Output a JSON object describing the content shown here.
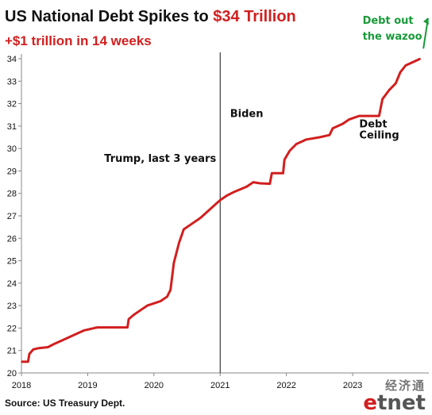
{
  "header": {
    "title_prefix": "US National Debt Spikes to ",
    "title_highlight": "$34 Trillion",
    "subtitle": "+$1 trillion  in 14 weeks"
  },
  "footer": {
    "source": "Source: US Treasury Dept.",
    "logo_cn": "经济通",
    "logo_en_e": "e",
    "logo_en_rest": "tnet"
  },
  "colors": {
    "line": "#d21f1f",
    "annotation_green": "#1a9a3a",
    "text": "#111111"
  },
  "chart_data": {
    "type": "line",
    "title": "US National Debt Spikes to $34 Trillion",
    "subtitle": "+$1 trillion  in 14 weeks",
    "x_ticks": [
      2018,
      2019,
      2020,
      2021,
      2022,
      2023
    ],
    "y_ticks": [
      20,
      21,
      22,
      23,
      24,
      25,
      26,
      27,
      28,
      29,
      30,
      31,
      32,
      33,
      34
    ],
    "xlim": [
      2018,
      2024.15
    ],
    "ylim": [
      20,
      34
    ],
    "grid": false,
    "legend": "none",
    "series": [
      {
        "values": [
          [
            2018.0,
            20.5
          ],
          [
            2018.1,
            20.5
          ],
          [
            2018.12,
            20.85
          ],
          [
            2018.18,
            21.05
          ],
          [
            2018.25,
            21.1
          ],
          [
            2018.4,
            21.15
          ],
          [
            2018.5,
            21.3
          ],
          [
            2018.65,
            21.5
          ],
          [
            2018.8,
            21.7
          ],
          [
            2018.95,
            21.9
          ],
          [
            2019.1,
            22.0
          ],
          [
            2019.15,
            22.03
          ],
          [
            2019.6,
            22.03
          ],
          [
            2019.62,
            22.4
          ],
          [
            2019.7,
            22.6
          ],
          [
            2019.8,
            22.8
          ],
          [
            2019.9,
            23.0
          ],
          [
            2020.0,
            23.1
          ],
          [
            2020.1,
            23.2
          ],
          [
            2020.2,
            23.4
          ],
          [
            2020.25,
            23.7
          ],
          [
            2020.3,
            24.9
          ],
          [
            2020.38,
            25.8
          ],
          [
            2020.45,
            26.4
          ],
          [
            2020.55,
            26.6
          ],
          [
            2020.7,
            26.9
          ],
          [
            2020.85,
            27.3
          ],
          [
            2021.0,
            27.7
          ],
          [
            2021.1,
            27.9
          ],
          [
            2021.2,
            28.05
          ],
          [
            2021.4,
            28.3
          ],
          [
            2021.5,
            28.5
          ],
          [
            2021.6,
            28.45
          ],
          [
            2021.75,
            28.43
          ],
          [
            2021.78,
            28.9
          ],
          [
            2021.95,
            28.9
          ],
          [
            2021.97,
            29.5
          ],
          [
            2022.05,
            29.9
          ],
          [
            2022.15,
            30.2
          ],
          [
            2022.3,
            30.4
          ],
          [
            2022.5,
            30.5
          ],
          [
            2022.65,
            30.6
          ],
          [
            2022.7,
            30.9
          ],
          [
            2022.85,
            31.1
          ],
          [
            2022.95,
            31.3
          ],
          [
            2023.1,
            31.45
          ],
          [
            2023.4,
            31.45
          ],
          [
            2023.45,
            32.2
          ],
          [
            2023.55,
            32.6
          ],
          [
            2023.65,
            32.9
          ],
          [
            2023.72,
            33.4
          ],
          [
            2023.8,
            33.7
          ],
          [
            2023.95,
            33.9
          ],
          [
            2024.02,
            34.0
          ]
        ]
      }
    ],
    "annotations": [
      {
        "id": "trump",
        "text": "Trump, last 3 years",
        "x": 2019.25,
        "y": 29.4
      },
      {
        "id": "biden",
        "text": "Biden",
        "x": 2021.15,
        "y": 31.4
      },
      {
        "id": "ceiling_1",
        "text": "Debt",
        "x": 2023.1,
        "y": 30.95
      },
      {
        "id": "ceiling_2",
        "text": "Ceiling",
        "x": 2023.1,
        "y": 30.45
      },
      {
        "id": "wazoo_1",
        "text": "Debt out",
        "x": 2023.15,
        "y": 35.55
      },
      {
        "id": "wazoo_2",
        "text": "the wazoo",
        "x": 2023.15,
        "y": 34.85
      }
    ],
    "vertical_line_x": 2021.0
  }
}
